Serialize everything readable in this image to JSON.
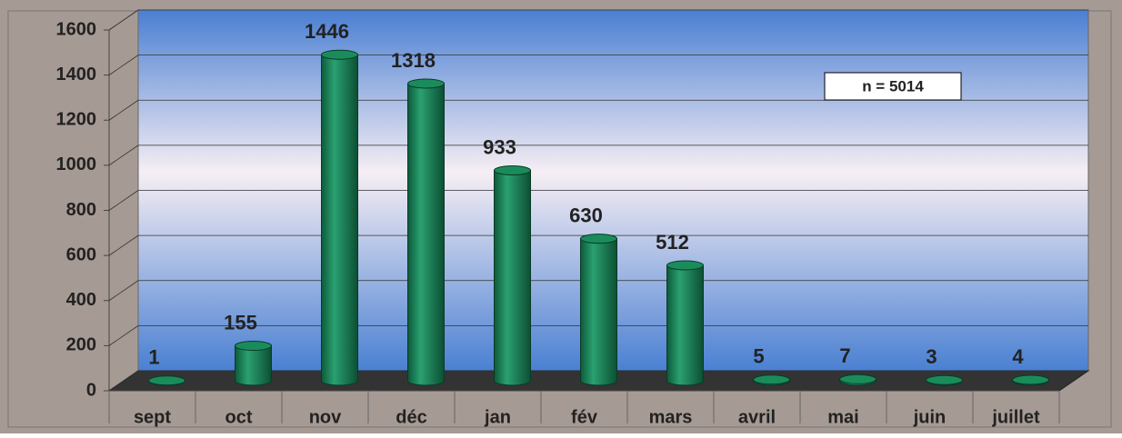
{
  "chart_data": {
    "type": "bar",
    "categories": [
      "sept",
      "oct",
      "nov",
      "déc",
      "jan",
      "fév",
      "mars",
      "avril",
      "mai",
      "juin",
      "juillet"
    ],
    "values": [
      1,
      155,
      1446,
      1318,
      933,
      630,
      512,
      5,
      7,
      3,
      4
    ],
    "color": "#1a8c5c",
    "ylim": [
      0,
      1600
    ],
    "yticks": [
      0,
      200,
      400,
      600,
      800,
      1000,
      1200,
      1400,
      1600
    ],
    "grid": true,
    "annotation": "n = 5014"
  }
}
